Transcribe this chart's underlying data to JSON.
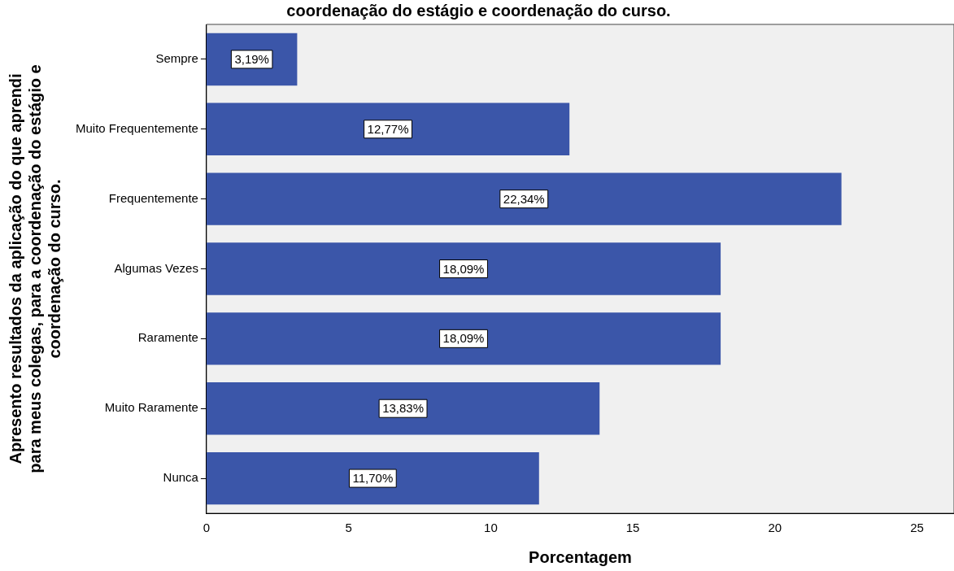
{
  "chart_data": {
    "type": "bar",
    "orientation": "horizontal",
    "title": "coordenação do estágio e coordenação do curso.",
    "xlabel": "Porcentagem",
    "ylabel": "Apresento resultados da aplicação do que aprendi\npara meus colegas, para a coordenação do estágio e\ncoordenação do curso.",
    "categories": [
      "Sempre",
      "Muito Frequentemente",
      "Frequentemente",
      "Algumas Vezes",
      "Raramente",
      "Muito Raramente",
      "Nunca"
    ],
    "values": [
      3.19,
      12.77,
      22.34,
      18.09,
      18.09,
      13.83,
      11.7
    ],
    "value_labels": [
      "3,19%",
      "12,77%",
      "22,34%",
      "18,09%",
      "18,09%",
      "13,83%",
      "11,70%"
    ],
    "color": "#3b56a9",
    "xlim": [
      0,
      26.3
    ],
    "xticks": [
      0,
      5,
      10,
      15,
      20,
      25
    ],
    "grid": false,
    "legend": false
  }
}
